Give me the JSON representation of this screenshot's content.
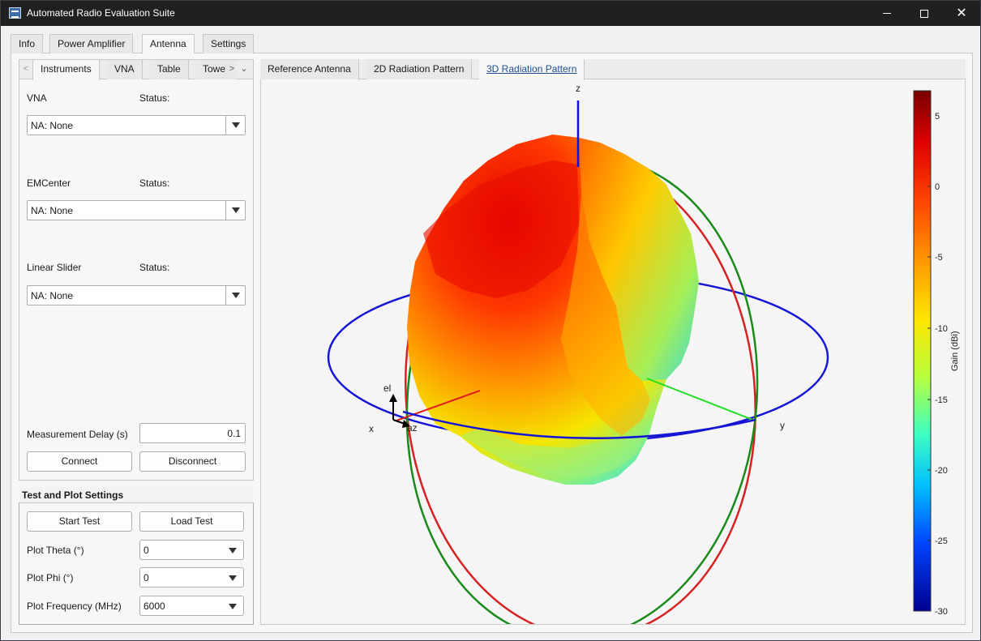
{
  "window": {
    "title": "Automated Radio Evaluation Suite"
  },
  "main_tabs": [
    {
      "label": "Info"
    },
    {
      "label": "Power Amplifier"
    },
    {
      "label": "Antenna"
    },
    {
      "label": "Settings"
    }
  ],
  "instrument_tabs": [
    {
      "label": "Instruments"
    },
    {
      "label": "VNA"
    },
    {
      "label": "Table"
    },
    {
      "label": "Towe"
    }
  ],
  "instruments": {
    "status_label": "Status:",
    "vna": {
      "label": "VNA",
      "value": "NA: None"
    },
    "emcenter": {
      "label": "EMCenter",
      "value": "NA: None"
    },
    "linear_slider": {
      "label": "Linear Slider",
      "value": "NA: None"
    },
    "measurement_delay": {
      "label": "Measurement Delay (s)",
      "value": "0.1"
    },
    "connect_label": "Connect",
    "disconnect_label": "Disconnect"
  },
  "test_settings": {
    "title": "Test and Plot Settings",
    "start_label": "Start Test",
    "load_label": "Load Test",
    "theta": {
      "label": "Plot Theta (°)",
      "value": "0"
    },
    "phi": {
      "label": "Plot Phi (°)",
      "value": "0"
    },
    "frequency": {
      "label": "Plot Frequency (MHz)",
      "value": "6000"
    }
  },
  "plot_tabs": [
    {
      "label": "Reference Antenna"
    },
    {
      "label": "2D Radiation Pattern"
    },
    {
      "label": "3D Radiation Pattern"
    }
  ],
  "plot": {
    "axis_labels": {
      "z": "z",
      "x": "x",
      "y": "y",
      "el": "el",
      "az": "az"
    },
    "colorbar": {
      "label": "Gain (dBi)",
      "ticks": [
        "5",
        "0",
        "-5",
        "-10",
        "-15",
        "-20",
        "-25",
        "-30"
      ]
    },
    "colors": {
      "x_axis": "#e02020",
      "y_axis": "#22dd22",
      "z_axis": "#1010e0",
      "azimuth_circle": "#1515d6",
      "elevation_circle_1": "#d62222",
      "elevation_circle_2": "#1a8a1a"
    }
  }
}
